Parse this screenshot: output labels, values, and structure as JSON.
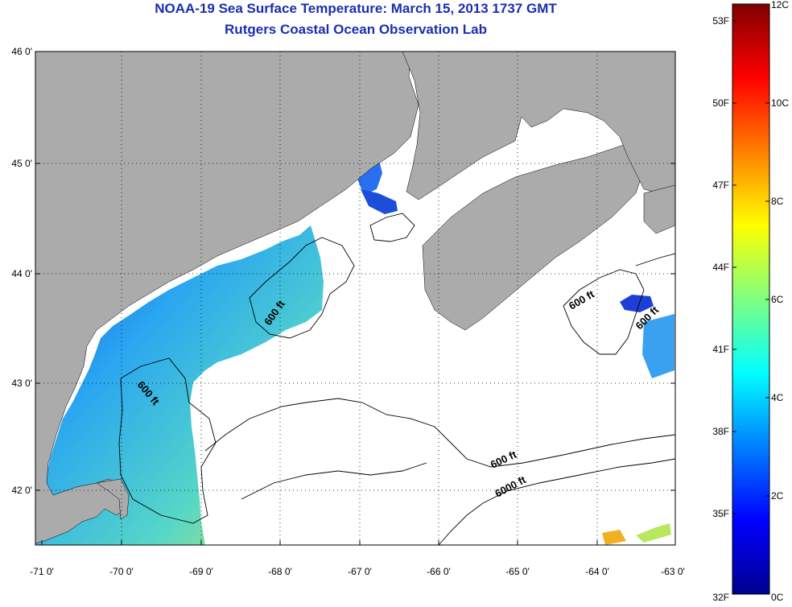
{
  "title": {
    "line1": "NOAA-19 Sea Surface Temperature:  March 15, 2013 1737 GMT",
    "line2": "Rutgers Coastal Ocean Observation Lab"
  },
  "map": {
    "lat_labels": [
      "46 0'",
      "45 0'",
      "44 0'",
      "43 0'",
      "42 0'"
    ],
    "lon_labels": [
      "-71 0'",
      "-70 0'",
      "-69 0'",
      "-68 0'",
      "-67 0'",
      "-66 0'",
      "-65 0'",
      "-64 0'",
      "-63 0'"
    ],
    "contour_labels": [
      {
        "id": "contour-label-1",
        "text": "600 ft"
      },
      {
        "id": "contour-label-2",
        "text": "600 ft"
      },
      {
        "id": "contour-label-3",
        "text": "600 ft"
      },
      {
        "id": "contour-label-4",
        "text": "600 ft"
      },
      {
        "id": "contour-label-5",
        "text": "600 ft"
      },
      {
        "id": "contour-label-6",
        "text": "6000 ft"
      }
    ],
    "colors": {
      "land": "#ababab",
      "cloud": "#ffffff",
      "frame": "#000000"
    }
  },
  "colorbar": {
    "fahrenheit_labels": [
      "53F",
      "50F",
      "47F",
      "44F",
      "41F",
      "38F",
      "35F",
      "32F"
    ],
    "celsius_labels": [
      "12C",
      "10C",
      "8C",
      "6C",
      "4C",
      "2C",
      "0C"
    ]
  }
}
